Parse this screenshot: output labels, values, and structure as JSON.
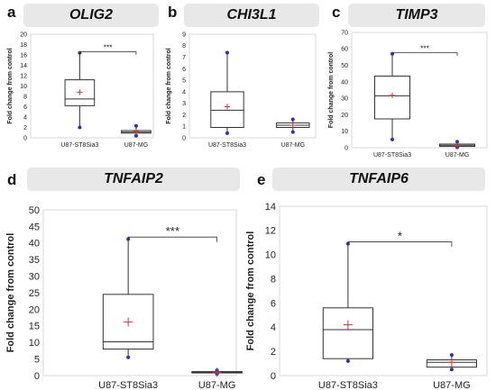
{
  "figure": {
    "panels": [
      {
        "letter": "a",
        "title": "OLIG2"
      },
      {
        "letter": "b",
        "title": "CHI3L1"
      },
      {
        "letter": "c",
        "title": "TIMP3"
      },
      {
        "letter": "d",
        "title": "TNFAIP2"
      },
      {
        "letter": "e",
        "title": "TNFAIP6"
      }
    ]
  },
  "chart_data": [
    {
      "type": "box",
      "title": "OLIG2",
      "ylabel": "Fold change from control",
      "ylim": [
        0,
        20
      ],
      "yticks": [
        0,
        2,
        4,
        6,
        8,
        10,
        12,
        14,
        16,
        18,
        20
      ],
      "categories": [
        "U87-ST8Sia3",
        "U87-MG"
      ],
      "boxes": [
        {
          "min": 2.0,
          "q1": 6.2,
          "median": 7.5,
          "q3": 11.2,
          "max": 16.4,
          "mean": 8.8
        },
        {
          "min": 0.4,
          "q1": 0.9,
          "median": 1.1,
          "q3": 1.4,
          "max": 2.3,
          "mean": 1.2
        }
      ],
      "significance": "***"
    },
    {
      "type": "box",
      "title": "CHI3L1",
      "ylabel": "Fold change from control",
      "ylim": [
        0,
        9
      ],
      "yticks": [
        0,
        1,
        2,
        3,
        4,
        5,
        6,
        7,
        8,
        9
      ],
      "categories": [
        "U87-ST8Sia3",
        "U87-MG"
      ],
      "boxes": [
        {
          "min": 0.4,
          "q1": 0.9,
          "median": 2.4,
          "q3": 4.0,
          "max": 7.4,
          "mean": 2.7
        },
        {
          "min": 0.5,
          "q1": 0.9,
          "median": 1.1,
          "q3": 1.3,
          "max": 1.6,
          "mean": 1.1
        }
      ],
      "significance": ""
    },
    {
      "type": "box",
      "title": "TIMP3",
      "ylabel": "Fold change from control",
      "ylim": [
        0,
        70
      ],
      "yticks": [
        0,
        10,
        20,
        30,
        40,
        50,
        60,
        70
      ],
      "categories": [
        "U87-ST8Sia3",
        "U87-MG"
      ],
      "boxes": [
        {
          "min": 5.0,
          "q1": 17.5,
          "median": 31.5,
          "q3": 43.5,
          "max": 57.0,
          "mean": 31.8
        },
        {
          "min": 0.2,
          "q1": 0.8,
          "median": 1.5,
          "q3": 2.2,
          "max": 3.6,
          "mean": 1.5
        }
      ],
      "significance": "***"
    },
    {
      "type": "box",
      "title": "TNFAIP2",
      "ylabel": "Fold change from control",
      "ylim": [
        0,
        50
      ],
      "yticks": [
        0,
        5,
        10,
        15,
        20,
        25,
        30,
        35,
        40,
        45,
        50
      ],
      "categories": [
        "U87-ST8Sia3",
        "U87-MG"
      ],
      "boxes": [
        {
          "min": 5.5,
          "q1": 8.0,
          "median": 10.2,
          "q3": 24.5,
          "max": 41.2,
          "mean": 16.2
        },
        {
          "min": 0.5,
          "q1": 0.8,
          "median": 1.0,
          "q3": 1.2,
          "max": 1.6,
          "mean": 1.0
        }
      ],
      "significance": "***"
    },
    {
      "type": "box",
      "title": "TNFAIP6",
      "ylabel": "Fold change from control",
      "ylim": [
        0,
        14
      ],
      "yticks": [
        0,
        2,
        4,
        6,
        8,
        10,
        12,
        14
      ],
      "categories": [
        "U87-ST8Sia3",
        "U87-MG"
      ],
      "boxes": [
        {
          "min": 1.2,
          "q1": 1.4,
          "median": 3.8,
          "q3": 5.6,
          "max": 10.9,
          "mean": 4.2
        },
        {
          "min": 0.5,
          "q1": 0.7,
          "median": 1.1,
          "q3": 1.3,
          "max": 1.7,
          "mean": 1.1
        }
      ],
      "significance": "*"
    }
  ]
}
